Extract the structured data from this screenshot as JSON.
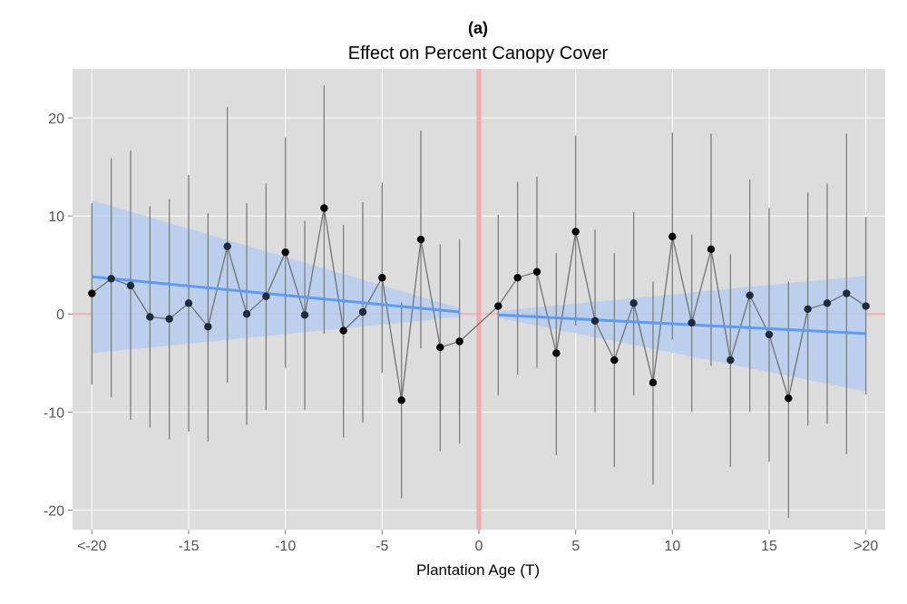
{
  "chart_data": {
    "type": "scatter",
    "title": "(a)",
    "subtitle": "Effect on Percent Canopy Cover",
    "xlabel": "Plantation Age (T)",
    "ylabel": "",
    "xlim": [
      -21,
      21
    ],
    "ylim": [
      -22,
      25
    ],
    "x_ticks": [
      {
        "value": -20,
        "label": "<-20"
      },
      {
        "value": -15,
        "label": "-15"
      },
      {
        "value": -10,
        "label": "-10"
      },
      {
        "value": -5,
        "label": "-5"
      },
      {
        "value": 0,
        "label": "0"
      },
      {
        "value": 5,
        "label": "5"
      },
      {
        "value": 10,
        "label": "10"
      },
      {
        "value": 15,
        "label": "15"
      },
      {
        "value": 20,
        "label": ">20"
      }
    ],
    "y_ticks": [
      {
        "value": 20,
        "label": "20"
      },
      {
        "value": 10,
        "label": "10"
      },
      {
        "value": 0,
        "label": "0"
      },
      {
        "value": -10,
        "label": "-10"
      },
      {
        "value": -20,
        "label": "-20"
      }
    ],
    "grid": true,
    "reference_lines": {
      "x": 0,
      "y": 0,
      "color": "#f4a3a3"
    },
    "series": [
      {
        "x": [
          -20,
          -19,
          -18,
          -17,
          -16,
          -15,
          -14,
          -13,
          -12,
          -11,
          -10,
          -9,
          -8,
          -7,
          -6,
          -5,
          -4,
          -3,
          -2,
          -1,
          1,
          2,
          3,
          4,
          5,
          6,
          7,
          8,
          9,
          10,
          11,
          12,
          13,
          14,
          15,
          16,
          17,
          18,
          19,
          20
        ],
        "y": [
          2.1,
          3.6,
          2.9,
          -0.3,
          -0.5,
          1.1,
          -1.3,
          6.9,
          0.0,
          1.8,
          6.3,
          -0.1,
          10.8,
          -1.7,
          0.2,
          3.7,
          -8.8,
          7.6,
          -3.4,
          -2.8,
          0.8,
          3.7,
          4.3,
          -4.0,
          8.4,
          -0.7,
          -4.7,
          1.1,
          -7.0,
          7.9,
          -0.9,
          6.6,
          -4.7,
          1.9,
          -2.1,
          -8.6,
          0.5,
          1.1,
          2.1,
          0.8
        ],
        "lower": [
          -7.2,
          -8.5,
          -10.8,
          -11.6,
          -12.8,
          -12.0,
          -13.0,
          -7.0,
          -11.3,
          -9.8,
          -5.5,
          -9.8,
          -2.0,
          -12.6,
          -11.1,
          -6.0,
          -18.8,
          -3.5,
          -14.0,
          -13.2,
          -8.3,
          -6.2,
          -5.5,
          -14.4,
          -1.2,
          -10.0,
          -15.6,
          -8.3,
          -17.4,
          -2.6,
          -10.0,
          -5.3,
          -15.6,
          -10.0,
          -15.1,
          -20.8,
          -11.4,
          -11.2,
          -14.3,
          -8.2
        ],
        "upper": [
          11.3,
          15.9,
          16.7,
          11.0,
          11.7,
          14.2,
          10.3,
          21.1,
          11.3,
          13.3,
          18.0,
          9.5,
          23.3,
          9.1,
          11.4,
          13.4,
          1.2,
          18.7,
          7.1,
          7.6,
          10.1,
          13.5,
          14.0,
          6.2,
          18.2,
          8.6,
          6.2,
          10.4,
          3.3,
          18.5,
          8.1,
          18.4,
          6.1,
          13.7,
          10.8,
          3.3,
          12.4,
          13.3,
          18.4,
          9.9
        ],
        "point_colors": [
          "#000000",
          "#1f2a3a",
          "#1f2a3a",
          "#1f2a3a",
          "#1f2a3a",
          "#1f2a3a",
          "#1f2a3a",
          "#1f2a3a",
          "#1f2a3a",
          "#1f2a3a",
          "#000000",
          "#1f2a3a",
          "#000000",
          "#000000",
          "#1f2a3a",
          "#000000",
          "#000000",
          "#000000",
          "#000000",
          "#000000",
          "#000000",
          "#000000",
          "#000000",
          "#000000",
          "#000000",
          "#1f2a3a",
          "#000000",
          "#1f2a3a",
          "#000000",
          "#000000",
          "#1f2a3a",
          "#000000",
          "#1f2a3a",
          "#1f2a3a",
          "#1f2a3a",
          "#000000",
          "#1f2a3a",
          "#1f2a3a",
          "#1f2a3a",
          "#1f2a3a"
        ]
      }
    ],
    "fits": [
      {
        "x": [
          -20,
          -1
        ],
        "y": [
          3.8,
          0.2
        ],
        "ci_lower": [
          -4.0,
          -0.3
        ],
        "ci_upper": [
          11.6,
          0.6
        ]
      },
      {
        "x": [
          1,
          20
        ],
        "y": [
          -0.1,
          -2.0
        ],
        "ci_lower": [
          -0.4,
          -7.9
        ],
        "ci_upper": [
          0.3,
          3.9
        ]
      }
    ],
    "colors": {
      "panel": "#dddddd",
      "grid": "#ffffff",
      "fit_line": "#5e9bf2",
      "ci_band": "#b6cdef",
      "error_bar": "#7f7f7f",
      "connector": "#6b6b6b",
      "reference": "#f4a3a3"
    }
  }
}
